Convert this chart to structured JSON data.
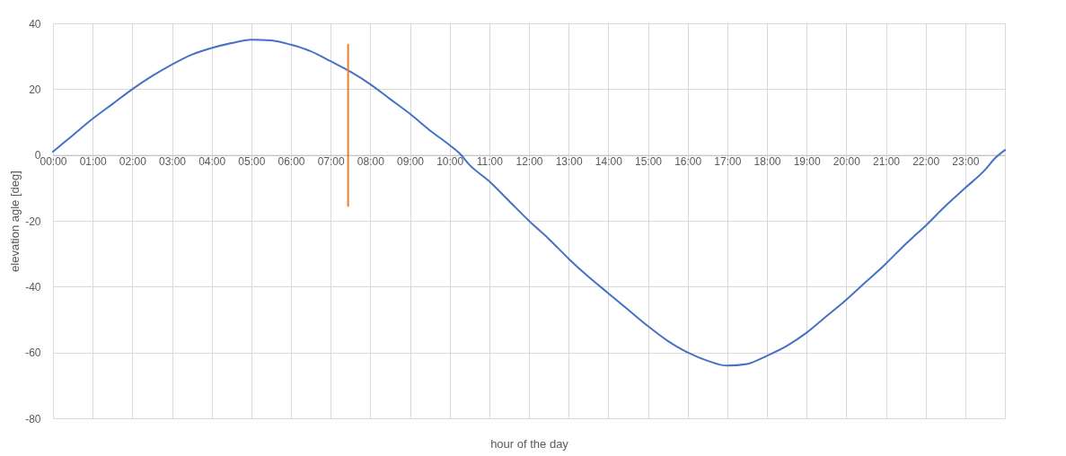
{
  "chart_data": {
    "type": "line",
    "xlabel": "hour of the day",
    "ylabel": "elevation agle [deg]",
    "xlim": [
      0,
      24
    ],
    "ylim": [
      -80,
      40
    ],
    "yticks": [
      -80,
      -60,
      -40,
      -20,
      0,
      20,
      40
    ],
    "xticks": [
      {
        "value": 0,
        "label": "00:00"
      },
      {
        "value": 1,
        "label": "01:00"
      },
      {
        "value": 2,
        "label": "02:00"
      },
      {
        "value": 3,
        "label": "03:00"
      },
      {
        "value": 4,
        "label": "04:00"
      },
      {
        "value": 5,
        "label": "05:00"
      },
      {
        "value": 6,
        "label": "06:00"
      },
      {
        "value": 7,
        "label": "07:00"
      },
      {
        "value": 8,
        "label": "08:00"
      },
      {
        "value": 9,
        "label": "09:00"
      },
      {
        "value": 10,
        "label": "10:00"
      },
      {
        "value": 11,
        "label": "11:00"
      },
      {
        "value": 12,
        "label": "12:00"
      },
      {
        "value": 13,
        "label": "13:00"
      },
      {
        "value": 14,
        "label": "14:00"
      },
      {
        "value": 15,
        "label": "15:00"
      },
      {
        "value": 16,
        "label": "16:00"
      },
      {
        "value": 17,
        "label": "17:00"
      },
      {
        "value": 18,
        "label": "18:00"
      },
      {
        "value": 19,
        "label": "19:00"
      },
      {
        "value": 20,
        "label": "20:00"
      },
      {
        "value": 21,
        "label": "21:00"
      },
      {
        "value": 22,
        "label": "22:00"
      },
      {
        "value": 23,
        "label": "23:00"
      },
      {
        "value": 24,
        "label": null
      }
    ],
    "grid": true,
    "line_style": "solid",
    "series": [
      {
        "color": "#4472c4",
        "x": [
          0,
          0.5,
          1,
          1.5,
          2,
          2.5,
          3,
          3.5,
          4,
          4.5,
          5,
          5.5,
          6,
          6.5,
          7,
          7.5,
          8,
          8.5,
          9,
          9.5,
          10,
          10.25,
          10.5,
          11,
          11.5,
          12,
          12.5,
          13,
          13.5,
          14,
          14.5,
          15,
          15.5,
          16,
          16.5,
          17,
          17.5,
          18,
          18.5,
          19,
          19.5,
          20,
          20.5,
          21,
          21.5,
          22,
          22.5,
          23,
          23.5,
          23.75,
          24
        ],
        "values": [
          1,
          6,
          11,
          15.5,
          20,
          24,
          27.5,
          30.5,
          32.5,
          34,
          35,
          34.8,
          33.5,
          31.5,
          28.5,
          25.3,
          21.5,
          17,
          12.5,
          7.5,
          3,
          0.5,
          -3,
          -8,
          -14,
          -20,
          -25.5,
          -31.5,
          -37,
          -42,
          -47,
          -52,
          -56.5,
          -60,
          -62.5,
          -64,
          -63.5,
          -61,
          -58,
          -54,
          -49,
          -44,
          -38.5,
          -33,
          -27,
          -21.5,
          -15.5,
          -10,
          -4.5,
          -1,
          1.5
        ]
      },
      {
        "type": "line",
        "color": "#ed7d31",
        "x": [
          7.44,
          7.44
        ],
        "values": [
          33.5,
          -15.5
        ]
      }
    ]
  }
}
